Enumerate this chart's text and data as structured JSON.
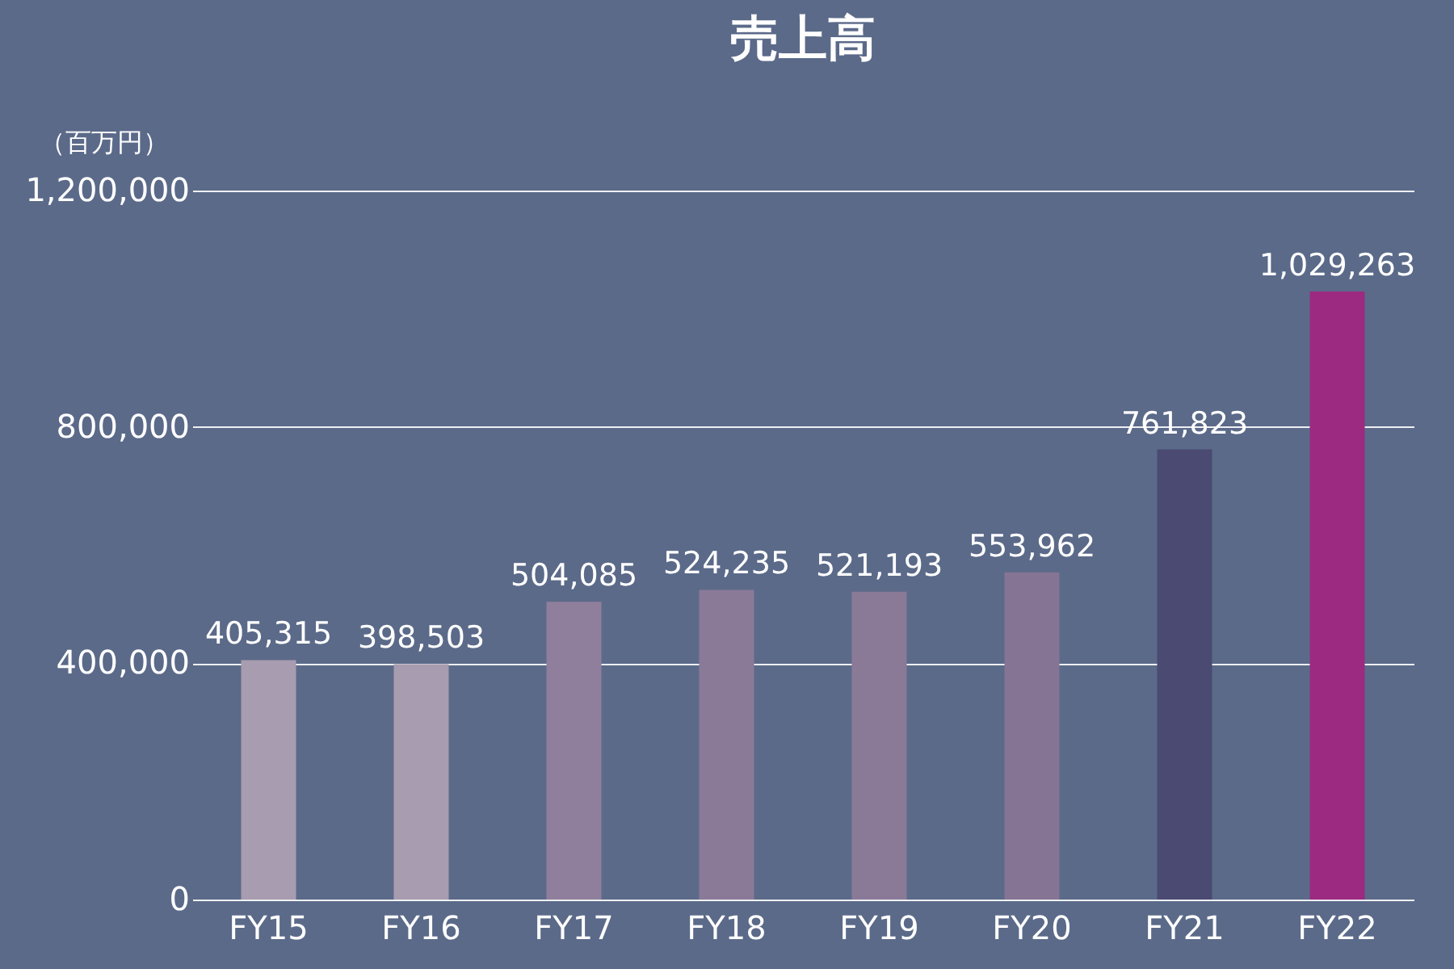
{
  "chart_data": {
    "type": "bar",
    "title": "売上高",
    "ylabel": "（百万円）",
    "categories": [
      "FY15",
      "FY16",
      "FY17",
      "FY18",
      "FY19",
      "FY20",
      "FY21",
      "FY22"
    ],
    "values": [
      405315,
      398503,
      504085,
      524235,
      521193,
      553962,
      761823,
      1029263
    ],
    "colors": [
      "#a89cb0",
      "#a89cb0",
      "#8f7f9c",
      "#8a7a98",
      "#8a7a98",
      "#857494",
      "#4a4a72",
      "#9c2a80"
    ],
    "value_labels": [
      "405,315",
      "398,503",
      "504,085",
      "524,235",
      "521,193",
      "553,962",
      "761,823",
      "1,029,263"
    ],
    "ylim": [
      0,
      1200000
    ],
    "yticks": [
      0,
      {
        "value": 400000,
        "label": "400,000"
      },
      {
        "value": 800000,
        "label": "800,000"
      },
      {
        "value": 1200000,
        "label": "1,200,000"
      }
    ],
    "grid": "y"
  }
}
